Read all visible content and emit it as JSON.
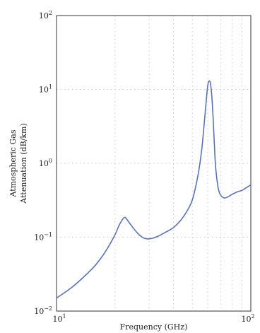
{
  "chart_data": {
    "type": "line",
    "xscale": "log",
    "yscale": "log",
    "xlim": [
      10,
      100
    ],
    "ylim": [
      0.01,
      100
    ],
    "grid": true,
    "xlabel": "Frequency (GHz)",
    "ylabel_lines": [
      "Atmospheric Gas",
      "Attenuation (dB/km)"
    ],
    "x_ticks": [
      {
        "base": "10",
        "exp": "1",
        "value": 10
      },
      {
        "base": "10",
        "exp": "2",
        "value": 100
      }
    ],
    "y_ticks": [
      {
        "base": "10",
        "exp": "−2",
        "value": 0.01
      },
      {
        "base": "10",
        "exp": "−1",
        "value": 0.1
      },
      {
        "base": "10",
        "exp": "0",
        "value": 1
      },
      {
        "base": "10",
        "exp": "1",
        "value": 10
      },
      {
        "base": "10",
        "exp": "2",
        "value": 100
      }
    ],
    "x_minor_grid": [
      20,
      30,
      40,
      50,
      60,
      70,
      80,
      90
    ],
    "y_major_grid": [
      0.1,
      1,
      10
    ],
    "series": [
      {
        "color": "#5a73b8",
        "x": [
          10,
          12,
          14,
          16,
          18,
          20,
          21,
          22,
          22.5,
          23,
          24,
          26,
          28,
          30,
          33,
          36,
          40,
          44,
          48,
          50,
          52,
          54,
          56,
          57,
          58,
          59,
          60,
          61,
          62,
          63,
          64,
          65,
          66,
          68,
          70,
          73,
          76,
          80,
          85,
          90,
          95,
          100
        ],
        "y": [
          0.015,
          0.021,
          0.03,
          0.043,
          0.066,
          0.108,
          0.145,
          0.178,
          0.185,
          0.175,
          0.15,
          0.115,
          0.098,
          0.095,
          0.102,
          0.115,
          0.135,
          0.175,
          0.25,
          0.32,
          0.48,
          0.8,
          1.6,
          2.6,
          4.3,
          7.2,
          11.2,
          13.0,
          12.0,
          8.0,
          4.0,
          1.7,
          0.85,
          0.46,
          0.37,
          0.34,
          0.35,
          0.38,
          0.41,
          0.43,
          0.47,
          0.51
        ]
      }
    ]
  }
}
